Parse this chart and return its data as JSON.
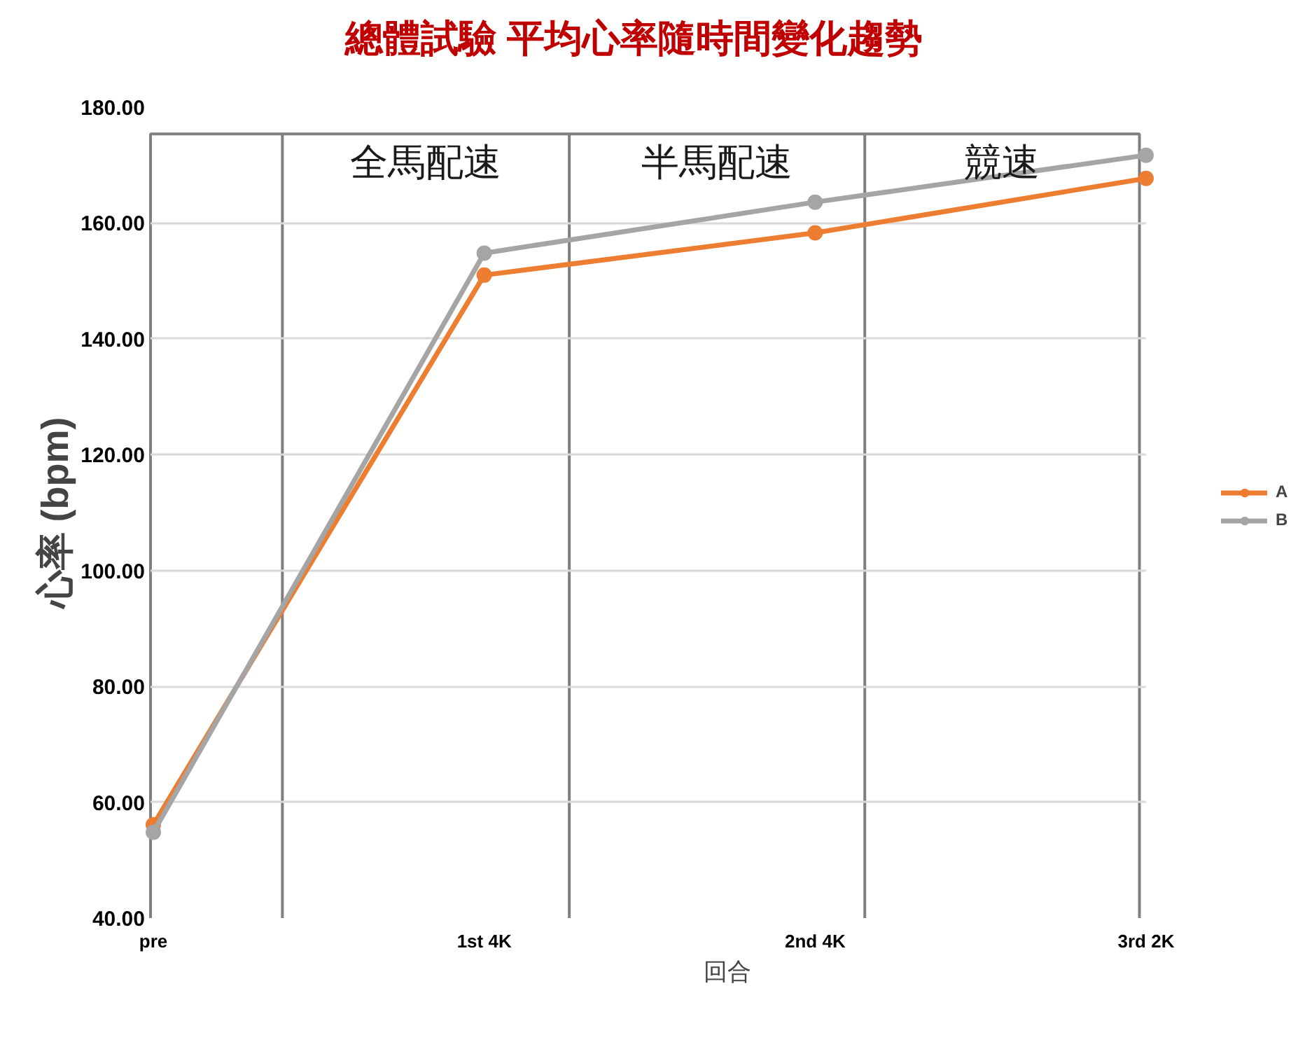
{
  "chart_data": {
    "type": "line",
    "title": "總體試驗 平均心率隨時間變化趨勢",
    "xlabel": "回合",
    "ylabel": "心率 (bpm)",
    "categories": [
      "pre",
      "1st 4K",
      "2nd 4K",
      "3rd 2K"
    ],
    "series": [
      {
        "name": "A",
        "color": "#ed7d31",
        "values": [
          56.1,
          151.0,
          158.3,
          167.7
        ]
      },
      {
        "name": "B",
        "color": "#a5a5a5",
        "values": [
          54.8,
          154.8,
          163.6,
          171.7
        ]
      }
    ],
    "ylim": [
      40,
      180
    ],
    "yticks": [
      {
        "value": 40,
        "label": "40.00"
      },
      {
        "value": 60,
        "label": "60.00"
      },
      {
        "value": 80,
        "label": "80.00"
      },
      {
        "value": 100,
        "label": "100.00"
      },
      {
        "value": 120,
        "label": "120.00"
      },
      {
        "value": 140,
        "label": "140.00"
      },
      {
        "value": 160,
        "label": "160.00"
      },
      {
        "value": 180,
        "label": "180.00"
      }
    ],
    "grid": "y",
    "legend": "right",
    "marker": "circle",
    "line_style": "solid",
    "annotations": [
      "全馬配速",
      "半馬配速",
      "競速"
    ]
  }
}
